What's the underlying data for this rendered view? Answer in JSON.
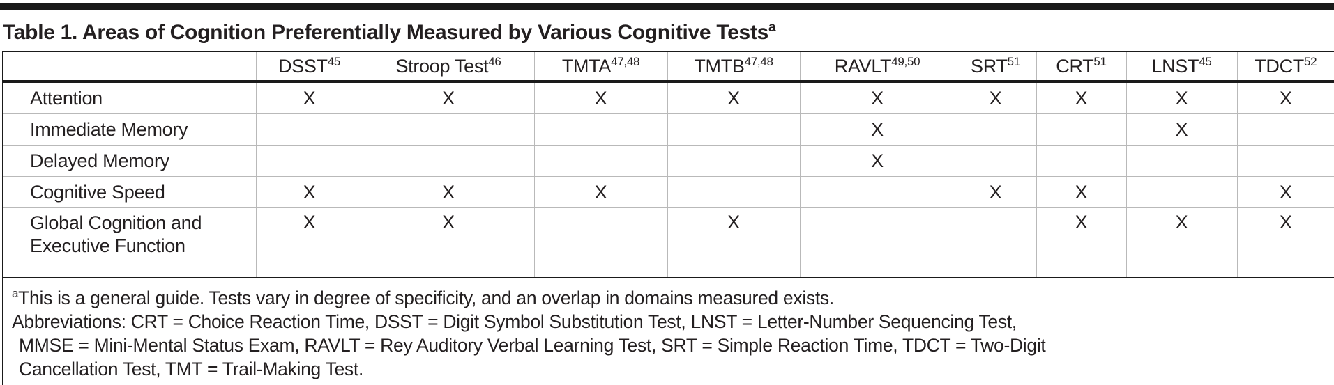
{
  "title": {
    "text": "Table 1. Areas of Cognition Preferentially Measured by Various Cognitive Tests",
    "sup": "a"
  },
  "table": {
    "columns": [
      {
        "label": "DSST",
        "sup": "45"
      },
      {
        "label": "Stroop Test",
        "sup": "46"
      },
      {
        "label": "TMTA",
        "sup": "47,48"
      },
      {
        "label": "TMTB",
        "sup": "47,48"
      },
      {
        "label": "RAVLT",
        "sup": "49,50"
      },
      {
        "label": "SRT",
        "sup": "51"
      },
      {
        "label": "CRT",
        "sup": "51"
      },
      {
        "label": "LNST",
        "sup": "45"
      },
      {
        "label": "TDCT",
        "sup": "52"
      }
    ],
    "mark_symbol": "X",
    "rows": [
      {
        "label": "Attention",
        "marks": [
          "X",
          "X",
          "X",
          "X",
          "X",
          "X",
          "X",
          "X",
          "X"
        ]
      },
      {
        "label": "Immediate Memory",
        "marks": [
          "",
          "",
          "",
          "",
          "X",
          "",
          "",
          "X",
          ""
        ]
      },
      {
        "label": "Delayed Memory",
        "marks": [
          "",
          "",
          "",
          "",
          "X",
          "",
          "",
          "",
          ""
        ]
      },
      {
        "label": "Cognitive Speed",
        "marks": [
          "X",
          "X",
          "X",
          "",
          "",
          "X",
          "X",
          "",
          "X"
        ]
      },
      {
        "label": "Global Cognition and Executive Function",
        "marks": [
          "X",
          "X",
          "",
          "X",
          "",
          "",
          "X",
          "X",
          "X"
        ]
      }
    ]
  },
  "footnote": {
    "marker": "a",
    "lines": [
      "This is a general guide. Tests vary in degree of specificity, and an overlap in domains measured exists.",
      "Abbreviations: CRT = Choice Reaction Time, DSST = Digit Symbol Substitution Test, LNST = Letter-Number Sequencing Test,",
      "MMSE = Mini-Mental Status Exam, RAVLT = Rey Auditory Verbal Learning Test, SRT = Simple Reaction Time, TDCT = Two-Digit",
      "Cancellation Test, TMT = Trail-Making Test."
    ]
  },
  "colors": {
    "text": "#231f20",
    "frame": "#1a1a1a",
    "grid": "#b9b9b9",
    "background": "#ffffff"
  }
}
